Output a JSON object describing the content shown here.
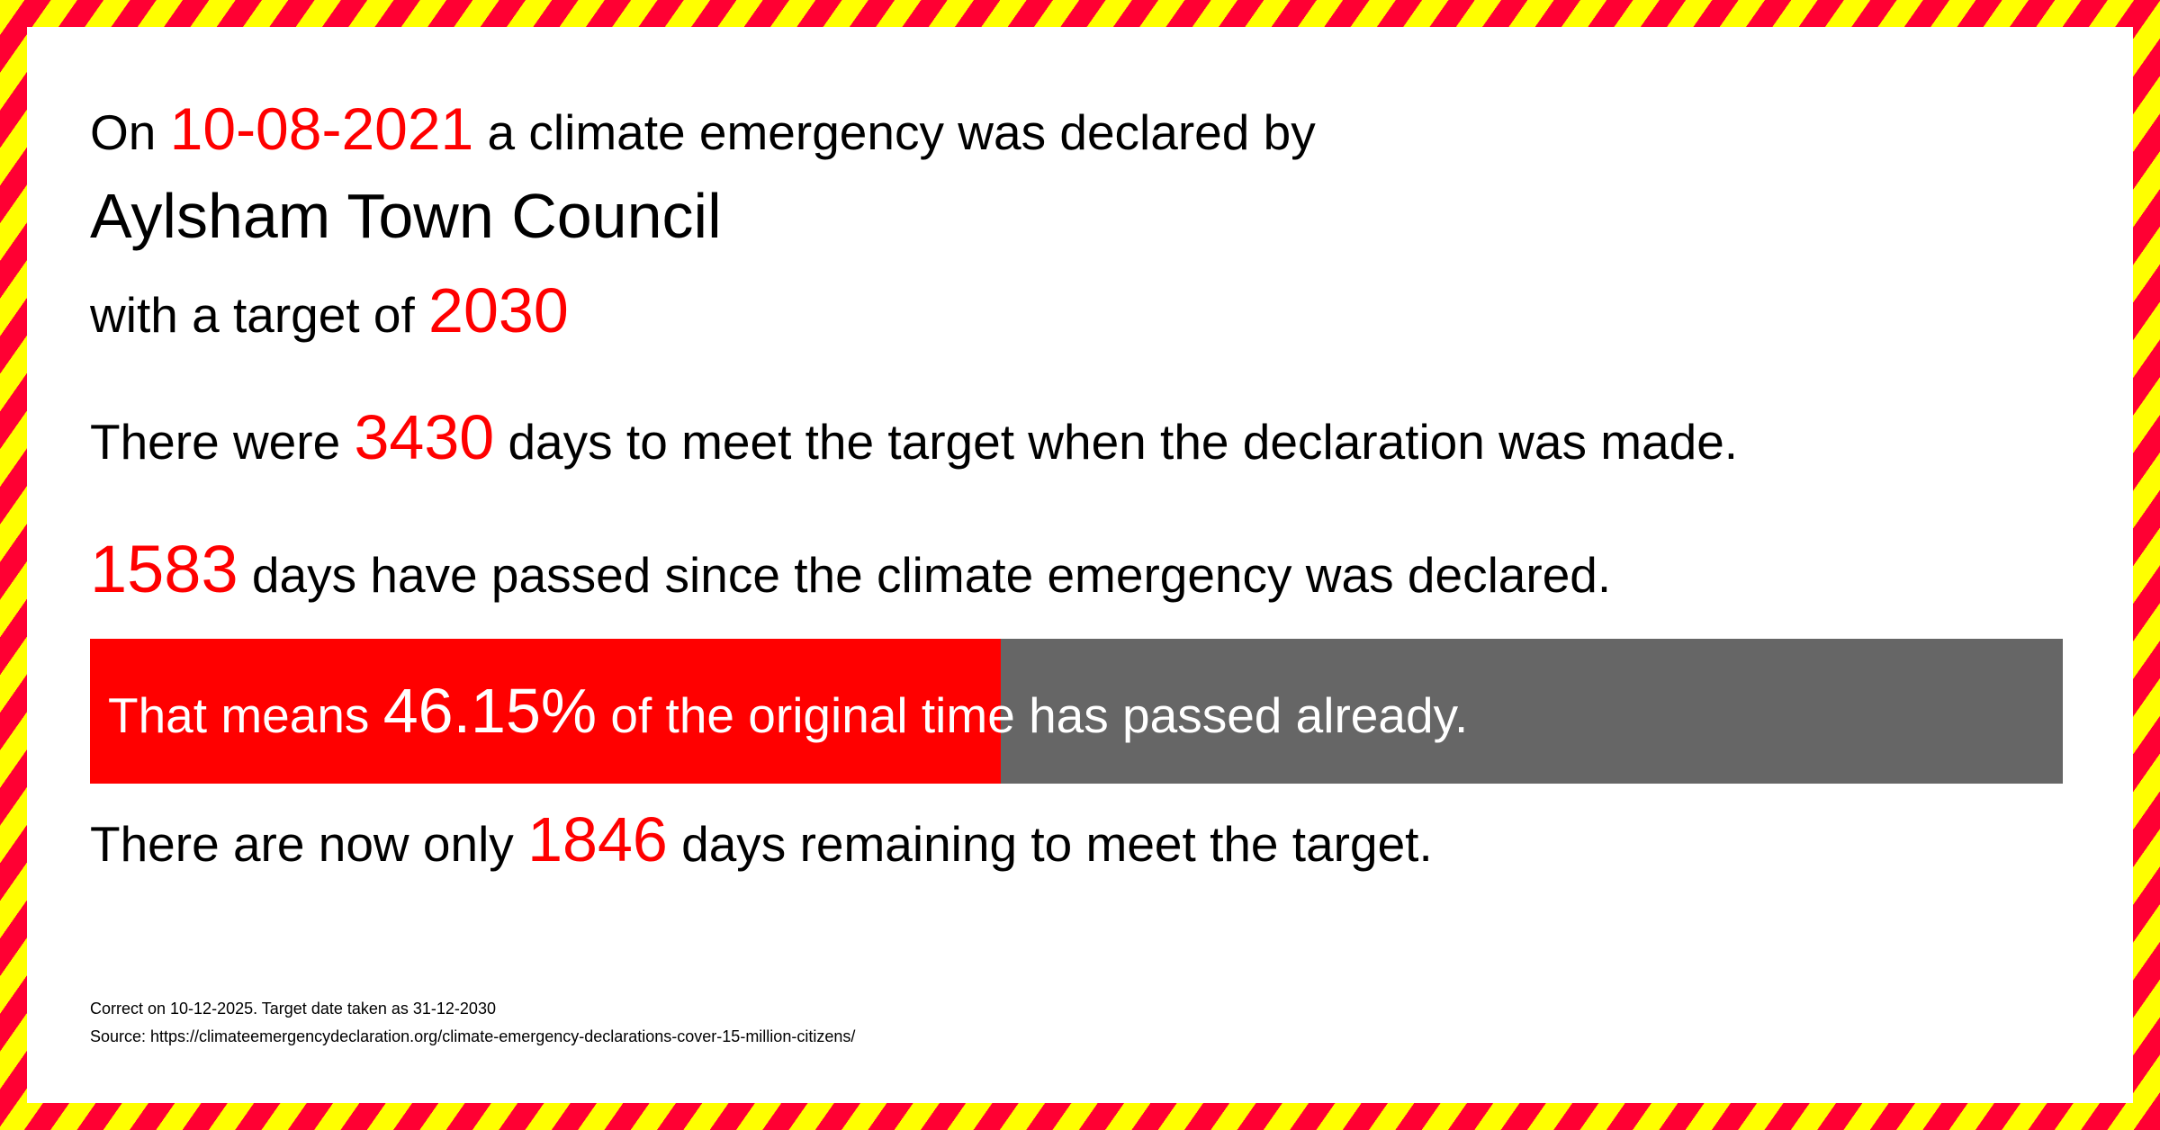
{
  "line1": {
    "prefix": "On",
    "date": "10-08-2021",
    "suffix": "a climate emergency was declared by"
  },
  "council": "Aylsham Town Council",
  "target": {
    "prefix": "with a target of",
    "year": "2030"
  },
  "days_total": {
    "prefix": "There were",
    "value": "3430",
    "suffix": "days to meet the target when the declaration was made."
  },
  "days_passed": {
    "value": "1583",
    "suffix": "days have passed since the climate emergency was declared."
  },
  "progress": {
    "prefix": "That means",
    "value": "46.15%",
    "suffix": "of the original time has passed already.",
    "percent": 46.15,
    "fill_color": "#ff0000",
    "track_color": "#666666"
  },
  "days_remaining": {
    "prefix": "There are now only",
    "value": "1846",
    "suffix": "days remaining to meet the target."
  },
  "footer": {
    "correct": "Correct on 10-12-2025. Target date taken as 31-12-2030",
    "source": "Source: https://climateemergencydeclaration.org/climate-emergency-declarations-cover-15-million-citizens/"
  },
  "colors": {
    "accent": "#ff0000",
    "stripe_red": "#ff0033",
    "stripe_yellow": "#ffff00"
  }
}
